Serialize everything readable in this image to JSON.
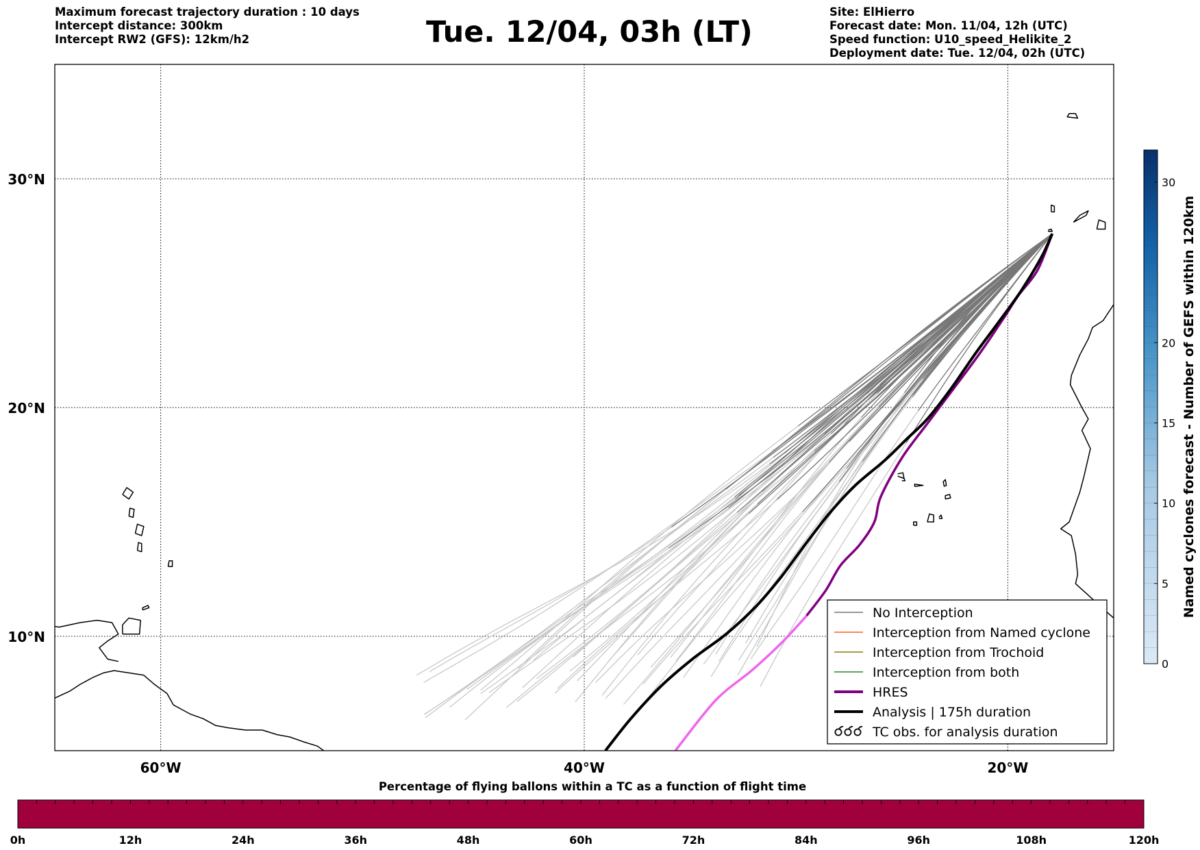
{
  "header": {
    "left_lines": [
      "Maximum forecast trajectory duration : 10 days",
      "Intercept distance: 300km",
      "Intercept RW2 (GFS):  12km/h2"
    ],
    "title": "Tue. 12/04, 03h (LT)",
    "right_lines": [
      "Site: ElHierro",
      "Forecast date: Mon. 11/04, 12h (UTC)",
      "Speed function: U10_speed_Helikite_2",
      "Deployment date: Tue. 12/04, 02h (UTC)"
    ]
  },
  "map": {
    "extent": {
      "lon_min": -65,
      "lon_max": -15,
      "lat_min": 5,
      "lat_max": 35
    },
    "lat_ticks": [
      {
        "value": 30,
        "label": "30°N"
      },
      {
        "value": 20,
        "label": "20°N"
      },
      {
        "value": 10,
        "label": "10°N"
      }
    ],
    "lon_ticks": [
      {
        "value": -60,
        "label": "60°W"
      },
      {
        "value": -40,
        "label": "40°W"
      },
      {
        "value": -20,
        "label": "20°W"
      }
    ],
    "grid_style": "dotted",
    "colors": {
      "no_interception": "#777777",
      "late_trajectories": "#c8c8c8",
      "named_cyclone": "#ff5a1f",
      "trochoid": "#808000",
      "both": "#228b22",
      "hres": "#800080",
      "hres_late": "#ee66ee",
      "analysis": "#000000"
    },
    "launch_point": {
      "lon": -17.9,
      "lat": 27.6
    },
    "analysis_track": [
      [
        -17.9,
        27.6
      ],
      [
        -18.4,
        26.6
      ],
      [
        -19.3,
        25.2
      ],
      [
        -20.3,
        23.9
      ],
      [
        -21.5,
        22.4
      ],
      [
        -22.7,
        20.8
      ],
      [
        -23.8,
        19.5
      ],
      [
        -24.8,
        18.6
      ],
      [
        -25.8,
        17.7
      ],
      [
        -27.2,
        16.6
      ],
      [
        -28.4,
        15.4
      ],
      [
        -29.5,
        14.1
      ],
      [
        -30.7,
        12.6
      ],
      [
        -31.9,
        11.3
      ],
      [
        -33.3,
        10.1
      ],
      [
        -34.9,
        9.0
      ],
      [
        -36.4,
        7.8
      ],
      [
        -37.8,
        6.4
      ],
      [
        -39.0,
        5.0
      ]
    ],
    "hres_track": [
      [
        -17.9,
        27.6
      ],
      [
        -18.6,
        26.0
      ],
      [
        -19.5,
        24.9
      ],
      [
        -20.2,
        23.9
      ],
      [
        -21.3,
        22.4
      ],
      [
        -22.5,
        20.9
      ],
      [
        -23.8,
        19.3
      ],
      [
        -25.0,
        17.8
      ],
      [
        -26.0,
        16.1
      ],
      [
        -26.3,
        15.0
      ],
      [
        -27.0,
        14.0
      ],
      [
        -27.9,
        13.1
      ],
      [
        -28.6,
        12.0
      ],
      [
        -29.5,
        10.9
      ],
      [
        -30.7,
        9.7
      ],
      [
        -32.1,
        8.5
      ],
      [
        -33.8,
        7.2
      ],
      [
        -35.7,
        5.0
      ]
    ],
    "hres_late_from_index": 13
  },
  "legend": {
    "position": "lower-right",
    "items": [
      {
        "label": "No Interception",
        "style": "thin",
        "color": "#777777"
      },
      {
        "label": "Interception from Named cyclone",
        "style": "thin",
        "color": "#ff5a1f"
      },
      {
        "label": "Interception from Trochoid",
        "style": "thin",
        "color": "#808000"
      },
      {
        "label": "Interception from both",
        "style": "thin",
        "color": "#228b22"
      },
      {
        "label": "HRES",
        "style": "thick",
        "color": "#800080"
      },
      {
        "label": "Analysis | 175h duration",
        "style": "thick",
        "color": "#000000"
      },
      {
        "label": "TC obs. for analysis duration",
        "style": "symbol",
        "color": "#000000"
      }
    ]
  },
  "colorbar": {
    "title": "Named cyclones forecast - Number of GEFS within 120km",
    "min": 0,
    "max": 32,
    "ticks": [
      0,
      5,
      10,
      15,
      20,
      30
    ],
    "tick_labels": [
      "0",
      "5",
      "10",
      "15",
      "20",
      "30"
    ],
    "color_low": "#dbe9f6",
    "color_high": "#08306b",
    "orientation": "vertical",
    "placement": "right"
  },
  "timeline": {
    "title": "Percentage of flying ballons within a TC as a function of flight time",
    "labels": [
      "0h",
      "12h",
      "24h",
      "36h",
      "48h",
      "60h",
      "72h",
      "84h",
      "96h",
      "108h",
      "120h"
    ],
    "fill_color": "#a0003c",
    "value_percent_all": 0
  }
}
